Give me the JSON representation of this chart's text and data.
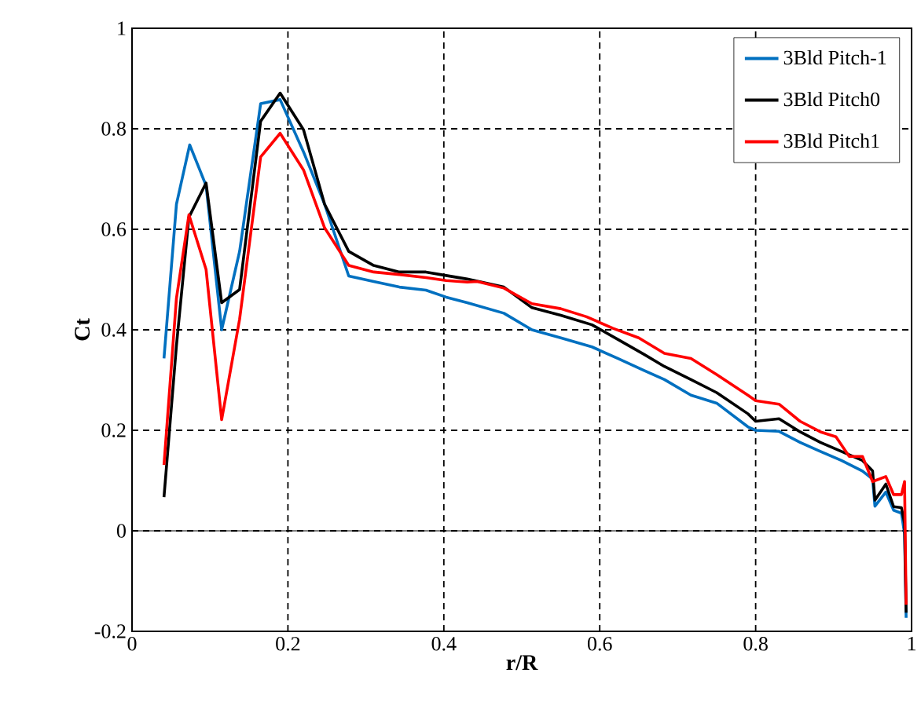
{
  "chart_data": {
    "type": "line",
    "xlabel": "r/R",
    "ylabel": "Ct",
    "xlim": [
      0,
      1
    ],
    "ylim": [
      -0.2,
      1
    ],
    "xticks": [
      0,
      0.2,
      0.4,
      0.6,
      0.8,
      1
    ],
    "yticks": [
      -0.2,
      0,
      0.2,
      0.4,
      0.6,
      0.8,
      1
    ],
    "grid": true,
    "legend": "top right",
    "marker": "none",
    "line_style": "solid",
    "ref_lines": [
      {
        "axis": "y",
        "value": 0,
        "color": "#000000",
        "line_style": "solid"
      }
    ],
    "series": [
      {
        "name": "3Bld Pitch-1",
        "color": "#0070c0",
        "x": [
          0.041,
          0.057,
          0.074,
          0.095,
          0.115,
          0.138,
          0.165,
          0.19,
          0.22,
          0.247,
          0.278,
          0.31,
          0.343,
          0.377,
          0.403,
          0.43,
          0.477,
          0.513,
          0.55,
          0.59,
          0.623,
          0.657,
          0.683,
          0.717,
          0.75,
          0.79,
          0.8,
          0.83,
          0.857,
          0.883,
          0.91,
          0.937,
          0.95,
          0.953,
          0.967,
          0.977,
          0.987,
          0.991,
          0.993
        ],
        "values": [
          0.343,
          0.65,
          0.768,
          0.687,
          0.4,
          0.556,
          0.85,
          0.858,
          0.754,
          0.65,
          0.507,
          0.496,
          0.485,
          0.479,
          0.465,
          0.454,
          0.433,
          0.4,
          0.384,
          0.366,
          0.343,
          0.319,
          0.301,
          0.27,
          0.254,
          0.207,
          0.2,
          0.198,
          0.176,
          0.158,
          0.14,
          0.119,
          0.103,
          0.049,
          0.077,
          0.041,
          0.035,
          -0.006,
          -0.173
        ]
      },
      {
        "name": "3Bld Pitch0",
        "color": "#000000",
        "x": [
          0.041,
          0.057,
          0.073,
          0.095,
          0.115,
          0.138,
          0.165,
          0.19,
          0.22,
          0.247,
          0.278,
          0.31,
          0.343,
          0.377,
          0.403,
          0.43,
          0.477,
          0.513,
          0.55,
          0.59,
          0.623,
          0.657,
          0.683,
          0.717,
          0.75,
          0.79,
          0.8,
          0.83,
          0.857,
          0.883,
          0.91,
          0.937,
          0.95,
          0.953,
          0.967,
          0.977,
          0.987,
          0.991,
          0.993
        ],
        "values": [
          0.067,
          0.369,
          0.624,
          0.692,
          0.454,
          0.48,
          0.815,
          0.871,
          0.798,
          0.65,
          0.556,
          0.528,
          0.515,
          0.515,
          0.508,
          0.501,
          0.485,
          0.444,
          0.429,
          0.41,
          0.381,
          0.351,
          0.327,
          0.301,
          0.275,
          0.233,
          0.218,
          0.223,
          0.197,
          0.176,
          0.158,
          0.14,
          0.119,
          0.061,
          0.093,
          0.048,
          0.046,
          0.015,
          -0.163
        ]
      },
      {
        "name": "3Bld Pitch1",
        "color": "#ff0000",
        "x": [
          0.041,
          0.057,
          0.073,
          0.095,
          0.115,
          0.138,
          0.165,
          0.19,
          0.22,
          0.247,
          0.278,
          0.31,
          0.343,
          0.377,
          0.403,
          0.43,
          0.443,
          0.477,
          0.513,
          0.55,
          0.583,
          0.617,
          0.65,
          0.683,
          0.717,
          0.75,
          0.79,
          0.8,
          0.83,
          0.857,
          0.883,
          0.903,
          0.92,
          0.937,
          0.95,
          0.967,
          0.977,
          0.987,
          0.991,
          0.993
        ],
        "values": [
          0.131,
          0.463,
          0.629,
          0.52,
          0.221,
          0.421,
          0.744,
          0.791,
          0.718,
          0.603,
          0.528,
          0.515,
          0.51,
          0.504,
          0.498,
          0.495,
          0.496,
          0.483,
          0.452,
          0.442,
          0.426,
          0.403,
          0.384,
          0.353,
          0.343,
          0.311,
          0.27,
          0.259,
          0.252,
          0.218,
          0.197,
          0.187,
          0.148,
          0.148,
          0.098,
          0.108,
          0.072,
          0.072,
          0.098,
          -0.147
        ]
      }
    ]
  }
}
